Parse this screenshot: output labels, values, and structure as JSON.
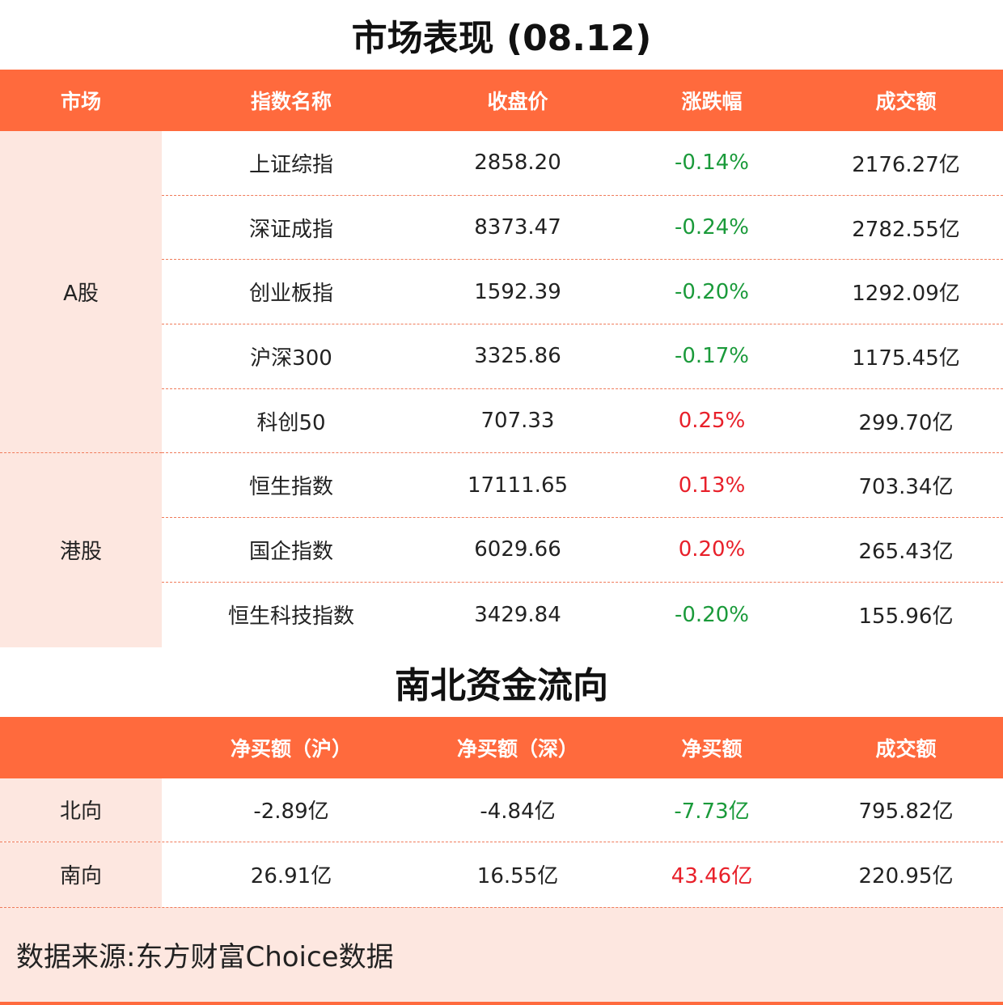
{
  "market": {
    "title": "市场表现 (08.12)",
    "headers": [
      "市场",
      "指数名称",
      "收盘价",
      "涨跌幅",
      "成交额"
    ],
    "groups": [
      {
        "market": "A股",
        "rows": [
          {
            "name": "上证综指",
            "close": "2858.20",
            "change": "-0.14%",
            "volume": "2176.27亿"
          },
          {
            "name": "深证成指",
            "close": "8373.47",
            "change": "-0.24%",
            "volume": "2782.55亿"
          },
          {
            "name": "创业板指",
            "close": "1592.39",
            "change": "-0.20%",
            "volume": "1292.09亿"
          },
          {
            "name": "沪深300",
            "close": "3325.86",
            "change": "-0.17%",
            "volume": "1175.45亿"
          },
          {
            "name": "科创50",
            "close": "707.33",
            "change": "0.25%",
            "volume": "299.70亿"
          }
        ]
      },
      {
        "market": "港股",
        "rows": [
          {
            "name": "恒生指数",
            "close": "17111.65",
            "change": "0.13%",
            "volume": "703.34亿"
          },
          {
            "name": "国企指数",
            "close": "6029.66",
            "change": "0.20%",
            "volume": "265.43亿"
          },
          {
            "name": "恒生科技指数",
            "close": "3429.84",
            "change": "-0.20%",
            "volume": "155.96亿"
          }
        ]
      }
    ]
  },
  "flow": {
    "title": "南北资金流向",
    "headers": [
      "",
      "净买额（沪）",
      "净买额（深）",
      "净买额",
      "成交额"
    ],
    "rows": [
      {
        "label": "北向",
        "sh": "-2.89亿",
        "sz": "-4.84亿",
        "net": "-7.73亿",
        "volume": "795.82亿"
      },
      {
        "label": "南向",
        "sh": "26.91亿",
        "sz": "16.55亿",
        "net": "43.46亿",
        "volume": "220.95亿"
      }
    ]
  },
  "colors": {
    "header_bg": "#ff6a3d",
    "label_bg": "#fde7e0",
    "up": "#e8202a",
    "down": "#1a9a3a"
  },
  "source": "数据来源:东方财富Choice数据"
}
